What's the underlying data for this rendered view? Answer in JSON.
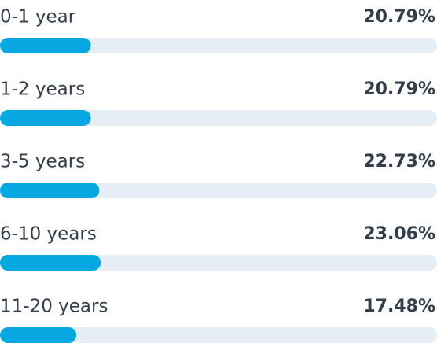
{
  "chart_data": {
    "type": "bar",
    "categories": [
      "0-1 year",
      "1-2 years",
      "3-5 years",
      "6-10 years",
      "11-20 years"
    ],
    "values": [
      20.79,
      20.79,
      22.73,
      23.06,
      17.48
    ],
    "value_labels": [
      "20.79%",
      "20.79%",
      "22.73%",
      "23.06%",
      "17.48%"
    ],
    "color": "#05a8e0",
    "track_color": "#e5eef5",
    "xlim": [
      0,
      100
    ]
  }
}
